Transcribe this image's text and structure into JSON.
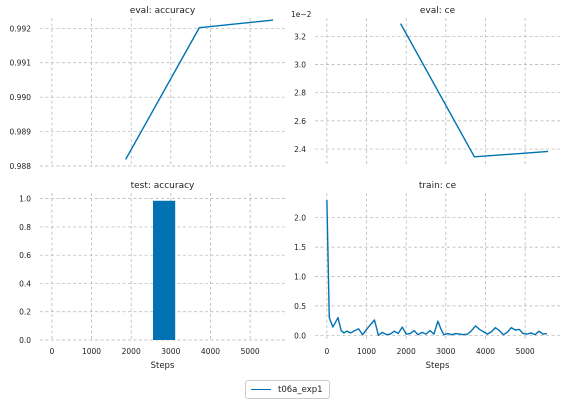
{
  "colors": {
    "series": "#0072b2",
    "grid": "#b0b0b0",
    "text": "#222222"
  },
  "legend": {
    "label": "t06a_exp1",
    "placement": "bottom-center"
  },
  "chart_data": [
    {
      "type": "line",
      "title": "eval: accuracy",
      "xlabel": "",
      "ylabel": "",
      "xlim": [
        -300,
        5880
      ],
      "ylim": [
        0.988,
        0.9923
      ],
      "xticks": [
        0,
        1000,
        2000,
        3000,
        4000,
        5000
      ],
      "show_xticklabels": false,
      "yticks": [
        0.988,
        0.989,
        0.99,
        0.991,
        0.992
      ],
      "ytick_labels": [
        "0.988",
        "0.989",
        "0.990",
        "0.991",
        "0.992"
      ],
      "grid": true,
      "series": [
        {
          "name": "t06a_exp1",
          "x": [
            1860,
            3720,
            5580
          ],
          "y": [
            0.98819,
            0.99202,
            0.99224
          ]
        }
      ]
    },
    {
      "type": "line",
      "title": "eval: ce",
      "xlabel": "",
      "ylabel": "",
      "offset_label": "1e−2",
      "xlim": [
        -300,
        5880
      ],
      "ylim": [
        2.28,
        3.33
      ],
      "xticks": [
        0,
        1000,
        2000,
        3000,
        4000,
        5000
      ],
      "show_xticklabels": false,
      "yticks": [
        2.4,
        2.6,
        2.8,
        3.0,
        3.2
      ],
      "ytick_labels": [
        "2.4",
        "2.6",
        "2.8",
        "3.0",
        "3.2"
      ],
      "grid": true,
      "series": [
        {
          "name": "t06a_exp1",
          "x": [
            1860,
            3720,
            5580
          ],
          "y": [
            3.29,
            2.345,
            2.383
          ]
        }
      ]
    },
    {
      "type": "bar",
      "title": "test: accuracy",
      "xlabel": "Steps",
      "ylabel": "",
      "xlim": [
        -300,
        5880
      ],
      "ylim": [
        0,
        1.04
      ],
      "xticks": [
        0,
        1000,
        2000,
        3000,
        4000,
        5000
      ],
      "xtick_labels": [
        "0",
        "1000",
        "2000",
        "3000",
        "4000",
        "5000"
      ],
      "yticks": [
        0.0,
        0.2,
        0.4,
        0.6,
        0.8,
        1.0
      ],
      "ytick_labels": [
        "0.0",
        "0.2",
        "0.4",
        "0.6",
        "0.8",
        "1.0"
      ],
      "grid": true,
      "series": [
        {
          "name": "t06a_exp1",
          "x": [
            2830
          ],
          "width": 560,
          "values": [
            0.985
          ]
        }
      ]
    },
    {
      "type": "line",
      "title": "train: ce",
      "xlabel": "Steps",
      "ylabel": "",
      "xlim": [
        -300,
        5880
      ],
      "ylim": [
        -0.08,
        2.42
      ],
      "xticks": [
        0,
        1000,
        2000,
        3000,
        4000,
        5000
      ],
      "xtick_labels": [
        "0",
        "1000",
        "2000",
        "3000",
        "4000",
        "5000"
      ],
      "yticks": [
        0.0,
        0.5,
        1.0,
        1.5,
        2.0
      ],
      "ytick_labels": [
        "0.0",
        "0.5",
        "1.0",
        "1.5",
        "2.0"
      ],
      "grid": true,
      "series": [
        {
          "name": "t06a_exp1",
          "x": [
            0,
            60,
            150,
            200,
            280,
            360,
            430,
            500,
            600,
            700,
            800,
            900,
            1000,
            1100,
            1200,
            1300,
            1400,
            1500,
            1600,
            1700,
            1800,
            1900,
            2000,
            2100,
            2200,
            2300,
            2400,
            2500,
            2600,
            2700,
            2800,
            2880,
            2950,
            3050,
            3150,
            3250,
            3350,
            3450,
            3550,
            3650,
            3750,
            3850,
            3950,
            4050,
            4150,
            4250,
            4350,
            4450,
            4550,
            4650,
            4750,
            4850,
            4950,
            5050,
            5150,
            5250,
            5350,
            5450,
            5550
          ],
          "y": [
            2.3,
            0.3,
            0.14,
            0.2,
            0.3,
            0.08,
            0.04,
            0.07,
            0.04,
            0.08,
            0.11,
            0.01,
            0.1,
            0.18,
            0.26,
            0.0,
            0.05,
            0.01,
            0.02,
            0.07,
            0.03,
            0.14,
            0.02,
            0.03,
            0.08,
            0.01,
            0.05,
            0.02,
            0.08,
            0.02,
            0.24,
            0.1,
            0.01,
            0.03,
            0.01,
            0.03,
            0.02,
            0.01,
            0.02,
            0.08,
            0.16,
            0.1,
            0.06,
            0.02,
            0.06,
            0.13,
            0.08,
            0.01,
            0.05,
            0.13,
            0.09,
            0.1,
            0.03,
            0.02,
            0.04,
            0.01,
            0.07,
            0.02,
            0.03
          ]
        }
      ]
    }
  ]
}
